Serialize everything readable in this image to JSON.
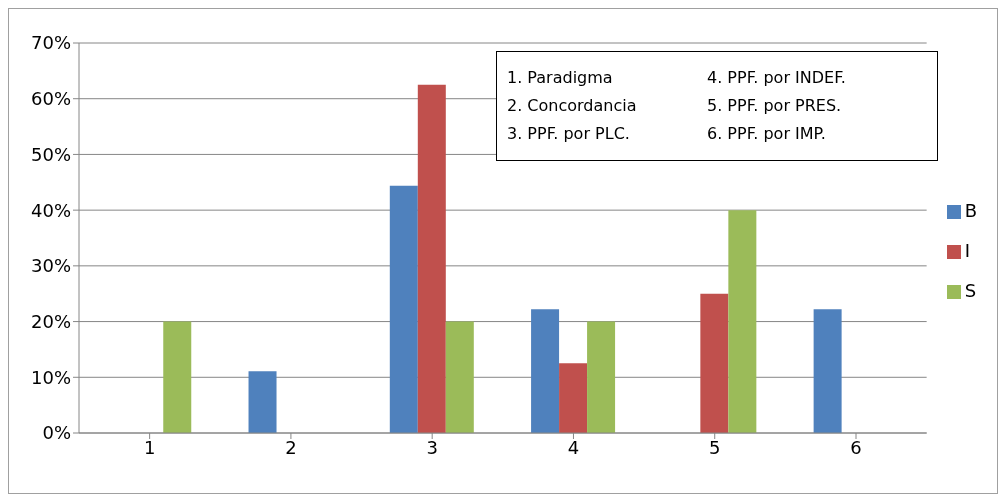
{
  "chart_data": {
    "type": "bar",
    "categories": [
      "1",
      "2",
      "3",
      "4",
      "5",
      "6"
    ],
    "series": [
      {
        "name": "B",
        "color": "#4f81bd",
        "values": [
          0,
          11.1,
          44.4,
          22.2,
          0,
          22.2
        ]
      },
      {
        "name": "I",
        "color": "#c0504d",
        "values": [
          0,
          0,
          62.5,
          12.5,
          25,
          0
        ]
      },
      {
        "name": "S",
        "color": "#9bbb59",
        "values": [
          20,
          0,
          20,
          20,
          40,
          0
        ]
      }
    ],
    "ylim": [
      0,
      70
    ],
    "yticks": [
      {
        "value": 0,
        "label": "0%"
      },
      {
        "value": 10,
        "label": "10%"
      },
      {
        "value": 20,
        "label": "20%"
      },
      {
        "value": 30,
        "label": "30%"
      },
      {
        "value": 40,
        "label": "40%"
      },
      {
        "value": 50,
        "label": "50%"
      },
      {
        "value": 60,
        "label": "60%"
      },
      {
        "value": 70,
        "label": "70%"
      }
    ],
    "grid": "y",
    "legend": "right",
    "annotations": [
      "1.  Paradigma",
      "2. Concordancia",
      "3. PPF. por PLC.",
      "4. PPF. por INDEF.",
      "5. PPF. por PRES.",
      "6. PPF. por IMP."
    ]
  }
}
